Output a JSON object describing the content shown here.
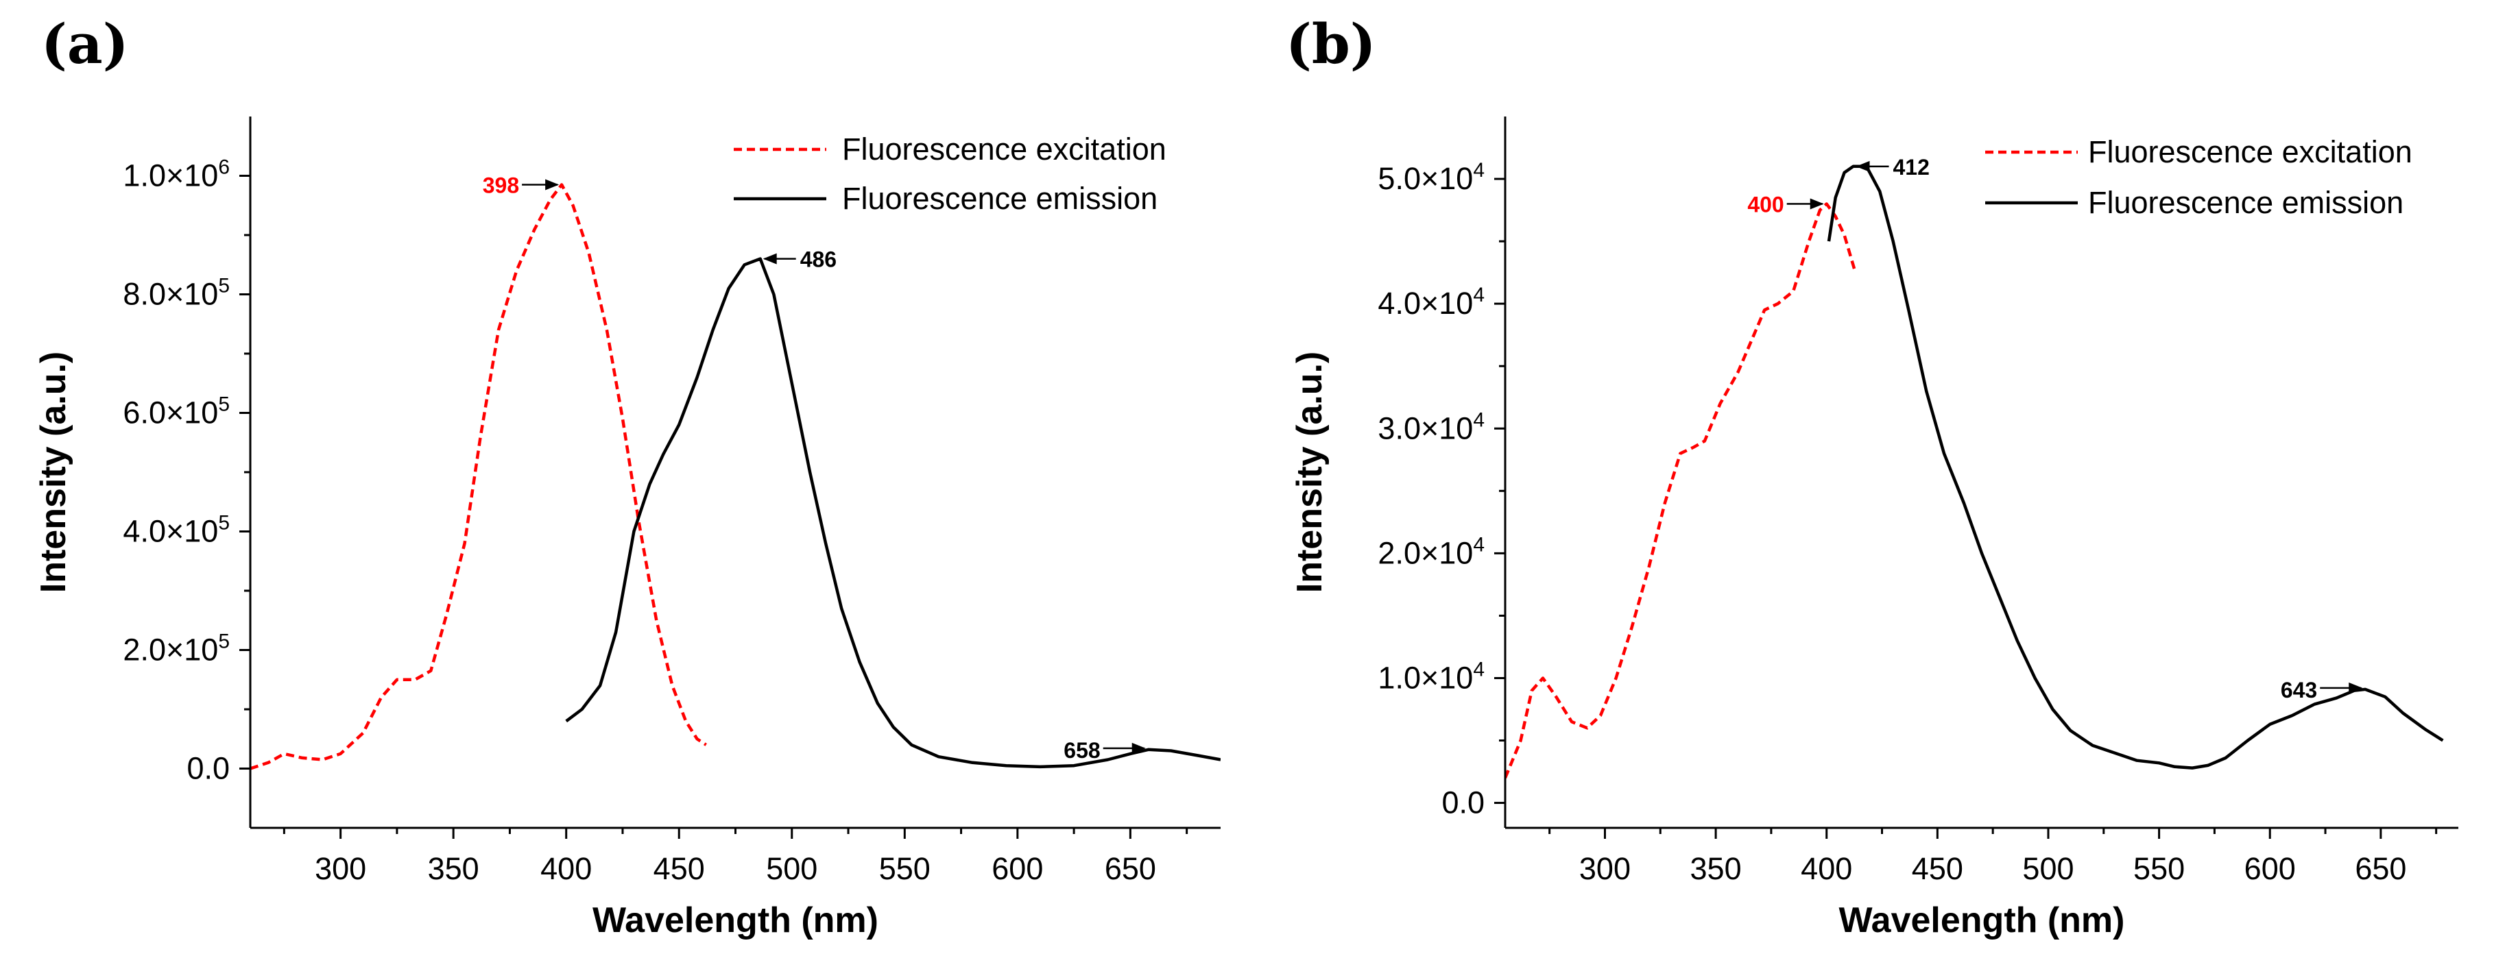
{
  "chart_data": [
    {
      "type": "line",
      "panel_label": "(a)",
      "xlabel": "Wavelength (nm)",
      "ylabel": "Intensity (a.u.)",
      "xlim": [
        260,
        690
      ],
      "ylim": [
        -100000,
        1100000
      ],
      "x_ticks": [
        300,
        350,
        400,
        450,
        500,
        550,
        600,
        650
      ],
      "x_tick_labels": [
        "300",
        "350",
        "400",
        "450",
        "500",
        "550",
        "600",
        "650"
      ],
      "y_ticks": [
        0,
        200000,
        400000,
        600000,
        800000,
        1000000
      ],
      "y_tick_labels": [
        {
          "mant": "0.0",
          "exp": ""
        },
        {
          "mant": "2.0×10",
          "exp": "5"
        },
        {
          "mant": "4.0×10",
          "exp": "5"
        },
        {
          "mant": "6.0×10",
          "exp": "5"
        },
        {
          "mant": "8.0×10",
          "exp": "5"
        },
        {
          "mant": "1.0×10",
          "exp": "6"
        }
      ],
      "legend_position": "top-right",
      "series": [
        {
          "name": "Fluorescence excitation",
          "color": "#ff0000",
          "style": "dashed",
          "points": [
            [
              260,
              0
            ],
            [
              268,
              10000
            ],
            [
              275,
              25000
            ],
            [
              283,
              18000
            ],
            [
              292,
              15000
            ],
            [
              300,
              25000
            ],
            [
              310,
              60000
            ],
            [
              318,
              120000
            ],
            [
              325,
              150000
            ],
            [
              333,
              150000
            ],
            [
              340,
              165000
            ],
            [
              347,
              260000
            ],
            [
              355,
              380000
            ],
            [
              362,
              560000
            ],
            [
              370,
              740000
            ],
            [
              378,
              840000
            ],
            [
              386,
              910000
            ],
            [
              393,
              960000
            ],
            [
              398,
              985000
            ],
            [
              403,
              950000
            ],
            [
              410,
              870000
            ],
            [
              418,
              740000
            ],
            [
              425,
              590000
            ],
            [
              432,
              420000
            ],
            [
              440,
              250000
            ],
            [
              447,
              140000
            ],
            [
              453,
              80000
            ],
            [
              458,
              50000
            ],
            [
              462,
              40000
            ]
          ]
        },
        {
          "name": "Fluorescence emission",
          "color": "#000000",
          "style": "solid",
          "points": [
            [
              400,
              80000
            ],
            [
              407,
              100000
            ],
            [
              415,
              140000
            ],
            [
              422,
              230000
            ],
            [
              430,
              400000
            ],
            [
              437,
              480000
            ],
            [
              443,
              530000
            ],
            [
              450,
              580000
            ],
            [
              458,
              660000
            ],
            [
              465,
              740000
            ],
            [
              472,
              810000
            ],
            [
              479,
              850000
            ],
            [
              486,
              860000
            ],
            [
              492,
              800000
            ],
            [
              500,
              650000
            ],
            [
              508,
              500000
            ],
            [
              515,
              380000
            ],
            [
              522,
              270000
            ],
            [
              530,
              180000
            ],
            [
              538,
              110000
            ],
            [
              545,
              70000
            ],
            [
              553,
              40000
            ],
            [
              565,
              20000
            ],
            [
              580,
              10000
            ],
            [
              595,
              5000
            ],
            [
              610,
              3000
            ],
            [
              625,
              5000
            ],
            [
              640,
              15000
            ],
            [
              650,
              25000
            ],
            [
              658,
              32000
            ],
            [
              668,
              30000
            ],
            [
              680,
              22000
            ],
            [
              690,
              15000
            ]
          ]
        }
      ],
      "annotations": [
        {
          "text": "398",
          "x": 398,
          "y": 985000,
          "color": "#ff0000"
        },
        {
          "text": "486",
          "x": 486,
          "y": 860000,
          "color": "#000000"
        },
        {
          "text": "658",
          "x": 658,
          "y": 32000,
          "color": "#000000"
        }
      ]
    },
    {
      "type": "line",
      "panel_label": "(b)",
      "xlabel": "Wavelength (nm)",
      "ylabel": "Intensity (a.u.)",
      "xlim": [
        255,
        685
      ],
      "ylim": [
        -2000,
        55000
      ],
      "x_ticks": [
        300,
        350,
        400,
        450,
        500,
        550,
        600,
        650
      ],
      "x_tick_labels": [
        "300",
        "350",
        "400",
        "450",
        "500",
        "550",
        "600",
        "650"
      ],
      "y_ticks": [
        0,
        10000,
        20000,
        30000,
        40000,
        50000
      ],
      "y_tick_labels": [
        {
          "mant": "0.0",
          "exp": ""
        },
        {
          "mant": "1.0×10",
          "exp": "4"
        },
        {
          "mant": "2.0×10",
          "exp": "4"
        },
        {
          "mant": "3.0×10",
          "exp": "4"
        },
        {
          "mant": "4.0×10",
          "exp": "4"
        },
        {
          "mant": "5.0×10",
          "exp": "4"
        }
      ],
      "legend_position": "top-right",
      "series": [
        {
          "name": "Fluorescence excitation",
          "color": "#ff0000",
          "style": "dashed",
          "points": [
            [
              255,
              2000
            ],
            [
              262,
              5000
            ],
            [
              267,
              9000
            ],
            [
              272,
              10000
            ],
            [
              278,
              8500
            ],
            [
              285,
              6500
            ],
            [
              292,
              6000
            ],
            [
              298,
              7000
            ],
            [
              305,
              10000
            ],
            [
              312,
              14000
            ],
            [
              320,
              19000
            ],
            [
              327,
              24000
            ],
            [
              334,
              28000
            ],
            [
              340,
              28500
            ],
            [
              345,
              29000
            ],
            [
              352,
              32000
            ],
            [
              360,
              34500
            ],
            [
              366,
              37000
            ],
            [
              372,
              39500
            ],
            [
              378,
              40000
            ],
            [
              385,
              41000
            ],
            [
              392,
              45000
            ],
            [
              397,
              47500
            ],
            [
              400,
              48000
            ],
            [
              404,
              47000
            ],
            [
              408,
              45500
            ],
            [
              413,
              42500
            ]
          ]
        },
        {
          "name": "Fluorescence emission",
          "color": "#000000",
          "style": "solid",
          "points": [
            [
              401,
              45000
            ],
            [
              404,
              48500
            ],
            [
              408,
              50500
            ],
            [
              412,
              51000
            ],
            [
              418,
              51000
            ],
            [
              424,
              49000
            ],
            [
              430,
              45000
            ],
            [
              437,
              39500
            ],
            [
              445,
              33000
            ],
            [
              453,
              28000
            ],
            [
              462,
              24000
            ],
            [
              470,
              20000
            ],
            [
              478,
              16500
            ],
            [
              486,
              13000
            ],
            [
              494,
              10000
            ],
            [
              502,
              7500
            ],
            [
              510,
              5800
            ],
            [
              520,
              4600
            ],
            [
              530,
              4000
            ],
            [
              540,
              3400
            ],
            [
              550,
              3200
            ],
            [
              557,
              2900
            ],
            [
              565,
              2800
            ],
            [
              572,
              3000
            ],
            [
              580,
              3600
            ],
            [
              590,
              5000
            ],
            [
              600,
              6300
            ],
            [
              610,
              7000
            ],
            [
              620,
              7900
            ],
            [
              630,
              8400
            ],
            [
              638,
              9000
            ],
            [
              643,
              9100
            ],
            [
              652,
              8500
            ],
            [
              660,
              7200
            ],
            [
              670,
              5900
            ],
            [
              678,
              5000
            ]
          ]
        }
      ],
      "annotations": [
        {
          "text": "400",
          "x": 400,
          "y": 48000,
          "color": "#ff0000"
        },
        {
          "text": "412",
          "x": 412,
          "y": 51000,
          "color": "#000000"
        },
        {
          "text": "643",
          "x": 643,
          "y": 9100,
          "color": "#000000"
        }
      ]
    }
  ]
}
